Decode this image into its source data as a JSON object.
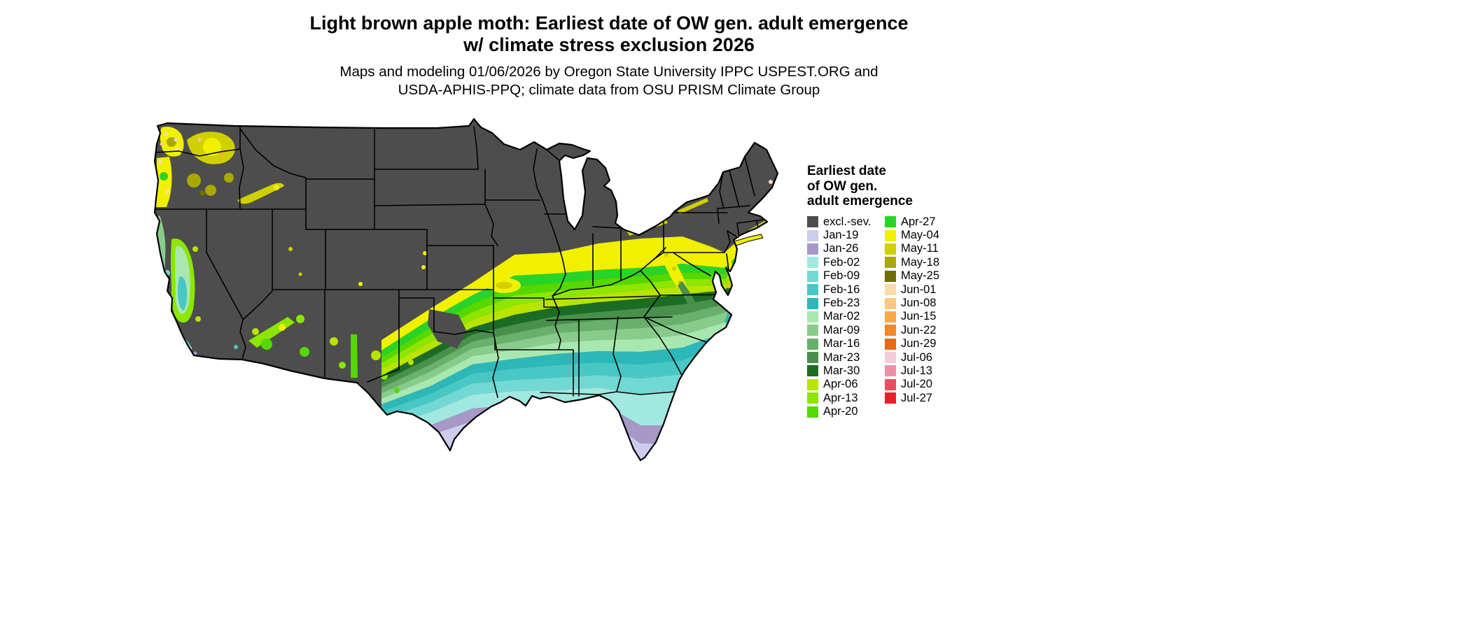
{
  "title": {
    "line1": "Light brown apple moth: Earliest date of OW gen. adult emergence",
    "line2": "w/ climate stress exclusion 2026"
  },
  "subtitle": {
    "line1": "Maps and modeling 01/06/2026 by Oregon State University IPPC USPEST.ORG and",
    "line2": "USDA-APHIS-PPQ; climate data from OSU PRISM Climate Group"
  },
  "legend": {
    "title_line1": "Earliest date",
    "title_line2": "of OW gen.",
    "title_line3": "adult emergence",
    "col1": [
      {
        "label": "excl.-sev.",
        "color": "#4d4d4d"
      },
      {
        "label": "Jan-19",
        "color": "#ccccec"
      },
      {
        "label": "Jan-26",
        "color": "#a898c8"
      },
      {
        "label": "Feb-02",
        "color": "#a0e8e0"
      },
      {
        "label": "Feb-09",
        "color": "#72d8d4"
      },
      {
        "label": "Feb-16",
        "color": "#48c8c4"
      },
      {
        "label": "Feb-23",
        "color": "#2cb8b8"
      },
      {
        "label": "Mar-02",
        "color": "#a8e8b0"
      },
      {
        "label": "Mar-09",
        "color": "#88cc8c"
      },
      {
        "label": "Mar-16",
        "color": "#68b06c"
      },
      {
        "label": "Mar-23",
        "color": "#48904c"
      },
      {
        "label": "Mar-30",
        "color": "#1c6c24"
      },
      {
        "label": "Apr-06",
        "color": "#b8e400"
      },
      {
        "label": "Apr-13",
        "color": "#8ce600"
      },
      {
        "label": "Apr-20",
        "color": "#54d800"
      }
    ],
    "col2": [
      {
        "label": "Apr-27",
        "color": "#28d428"
      },
      {
        "label": "May-04",
        "color": "#f0f000"
      },
      {
        "label": "May-11",
        "color": "#d0d000"
      },
      {
        "label": "May-18",
        "color": "#a8a800"
      },
      {
        "label": "May-25",
        "color": "#6e6e00"
      },
      {
        "label": "Jun-01",
        "color": "#f8dca8"
      },
      {
        "label": "Jun-08",
        "color": "#f8c880"
      },
      {
        "label": "Jun-15",
        "color": "#f8a848"
      },
      {
        "label": "Jun-22",
        "color": "#f08828"
      },
      {
        "label": "Jun-29",
        "color": "#e86818"
      },
      {
        "label": "Jul-06",
        "color": "#f4ccd8"
      },
      {
        "label": "Jul-13",
        "color": "#ec90a8"
      },
      {
        "label": "Jul-20",
        "color": "#e85060"
      },
      {
        "label": "Jul-27",
        "color": "#e82028"
      }
    ]
  },
  "map": {
    "region": "Conterminous United States",
    "outline_color": "#000000"
  }
}
